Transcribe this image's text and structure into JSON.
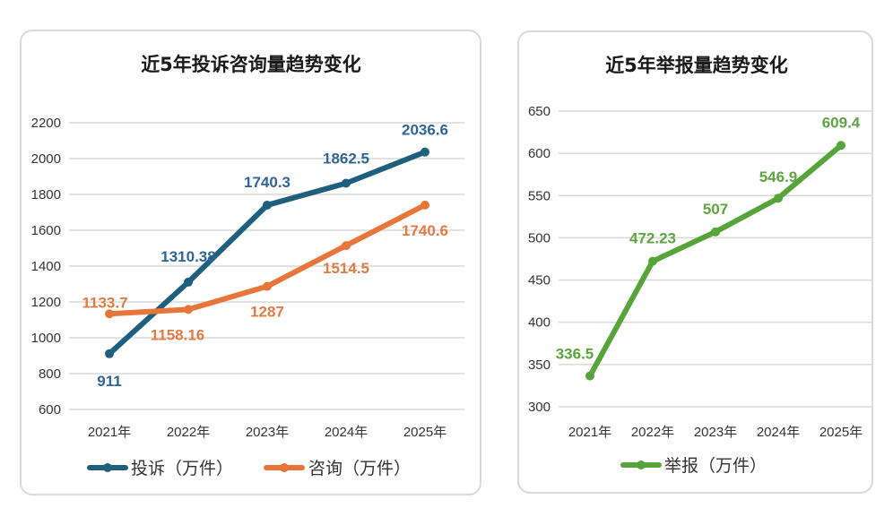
{
  "chart_data": [
    {
      "type": "line",
      "title": "近5年投诉咨询量趋势变化",
      "categories": [
        "2021年",
        "2022年",
        "2023年",
        "2024年",
        "2025年"
      ],
      "ylim": [
        600,
        2200
      ],
      "yticks": [
        600,
        800,
        1000,
        1200,
        1400,
        1600,
        1800,
        2000,
        2200
      ],
      "ytick_labels": [
        "600",
        "800",
        "1000",
        "1200",
        "1400",
        "1600",
        "1800",
        "2000",
        "2200"
      ],
      "grid": true,
      "legend_position": "bottom",
      "series": [
        {
          "name": "投诉（万件）",
          "values": [
            911,
            1310.38,
            1740.3,
            1862.5,
            2036.6
          ],
          "labels": [
            "911",
            "1310.38",
            "1740.3",
            "1862.5",
            "2036.6"
          ],
          "color": "#1f5f7e",
          "label_color": "#2f6594"
        },
        {
          "name": "咨询（万件）",
          "values": [
            1133.7,
            1158.16,
            1287,
            1514.5,
            1740.6
          ],
          "labels": [
            "1133.7",
            "1158.16",
            "1287",
            "1514.5",
            "1740.6"
          ],
          "color": "#e8763a",
          "label_color": "#e07b45"
        }
      ]
    },
    {
      "type": "line",
      "title": "近5年举报量趋势变化",
      "categories": [
        "2021年",
        "2022年",
        "2023年",
        "2024年",
        "2025年"
      ],
      "ylim": [
        300,
        650
      ],
      "yticks": [
        300,
        350,
        400,
        450,
        500,
        550,
        600,
        650
      ],
      "ytick_labels": [
        "300",
        "350",
        "400",
        "450",
        "500",
        "550",
        "600",
        "650"
      ],
      "grid": true,
      "legend_position": "bottom",
      "series": [
        {
          "name": "举报（万件）",
          "values": [
            336.5,
            472.23,
            507,
            546.9,
            609.4
          ],
          "labels": [
            "336.5",
            "472.23",
            "507",
            "546.9",
            "609.4"
          ],
          "color": "#56a43a",
          "label_color": "#5ca540"
        }
      ]
    }
  ]
}
